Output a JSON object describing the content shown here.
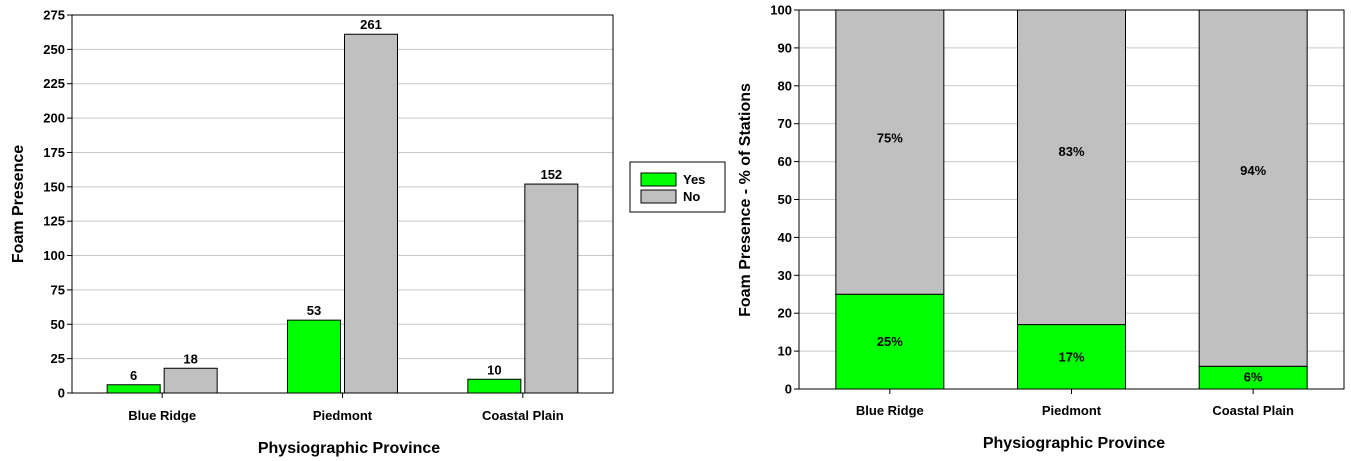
{
  "colors": {
    "yes": "#00ff00",
    "no": "#c0c0c0",
    "grid": "#c8c8c8",
    "axis": "#000000"
  },
  "legend": {
    "items": [
      "Yes",
      "No"
    ]
  },
  "chart_data": [
    {
      "type": "bar",
      "title": "",
      "xlabel": "Physiographic Province",
      "ylabel": "Foam Presence",
      "categories": [
        "Blue Ridge",
        "Piedmont",
        "Coastal Plain"
      ],
      "series": [
        {
          "name": "Yes",
          "values": [
            6,
            53,
            10
          ]
        },
        {
          "name": "No",
          "values": [
            18,
            261,
            152
          ]
        }
      ],
      "ylim": [
        0,
        275
      ],
      "yticks": [
        0,
        25,
        50,
        75,
        100,
        125,
        150,
        175,
        200,
        225,
        250,
        275
      ],
      "grid": true,
      "legend": "right"
    },
    {
      "type": "bar",
      "stacked": true,
      "title": "",
      "xlabel": "Physiographic Province",
      "ylabel": "Foam Presence - % of Stations",
      "categories": [
        "Blue Ridge",
        "Piedmont",
        "Coastal Plain"
      ],
      "series": [
        {
          "name": "Yes",
          "values": [
            25,
            17,
            6
          ],
          "labels": [
            "25%",
            "17%",
            "6%"
          ]
        },
        {
          "name": "No",
          "values": [
            75,
            83,
            94
          ],
          "labels": [
            "75%",
            "83%",
            "94%"
          ]
        }
      ],
      "ylim": [
        0,
        100
      ],
      "yticks": [
        0,
        10,
        20,
        30,
        40,
        50,
        60,
        70,
        80,
        90,
        100
      ],
      "grid": true
    }
  ]
}
